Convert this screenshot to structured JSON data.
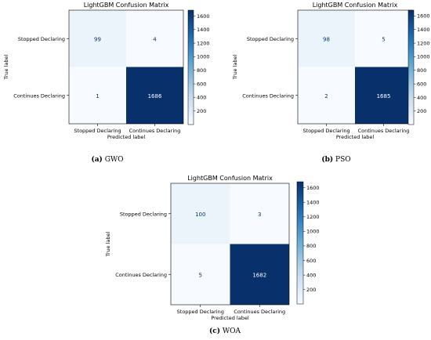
{
  "chart_data": [
    {
      "type": "heatmap",
      "title": "LightGBM Confusion Matrix",
      "xlabel": "Predicted label",
      "ylabel": "True label",
      "row_labels": [
        "Stopped Declaring",
        "Continues Declaring"
      ],
      "col_labels": [
        "Stopped Declaring",
        "Continues Declaring"
      ],
      "values": [
        [
          99,
          4
        ],
        [
          1,
          1686
        ]
      ],
      "colorbar_ticks": [
        200,
        400,
        600,
        800,
        1000,
        1200,
        1400,
        1600
      ],
      "colormap": "Blues",
      "caption_letter": "(a)",
      "caption_text": "GWO"
    },
    {
      "type": "heatmap",
      "title": "LightGBM Confusion Matrix",
      "xlabel": "Predicted label",
      "ylabel": "True label",
      "row_labels": [
        "Stopped Declaring",
        "Continues Declaring"
      ],
      "col_labels": [
        "Stopped Declaring",
        "Continues Declaring"
      ],
      "values": [
        [
          98,
          5
        ],
        [
          2,
          1685
        ]
      ],
      "colorbar_ticks": [
        200,
        400,
        600,
        800,
        1000,
        1200,
        1400,
        1600
      ],
      "colormap": "Blues",
      "caption_letter": "(b)",
      "caption_text": "PSO"
    },
    {
      "type": "heatmap",
      "title": "LightGBM Confusion Matrix",
      "xlabel": "Predicted label",
      "ylabel": "True label",
      "row_labels": [
        "Stopped Declaring",
        "Continues Declaring"
      ],
      "col_labels": [
        "Stopped Declaring",
        "Continues Declaring"
      ],
      "values": [
        [
          100,
          3
        ],
        [
          5,
          1682
        ]
      ],
      "colorbar_ticks": [
        200,
        400,
        600,
        800,
        1000,
        1200,
        1400,
        1600
      ],
      "colormap": "Blues",
      "caption_letter": "(c)",
      "caption_text": "WOA"
    }
  ],
  "colors": {
    "cmap_low": "#f7fbff",
    "cmap_mid1": "#c6dbef",
    "cmap_mid2": "#6baed6",
    "cmap_mid3": "#2171b5",
    "cmap_high": "#08306b"
  }
}
